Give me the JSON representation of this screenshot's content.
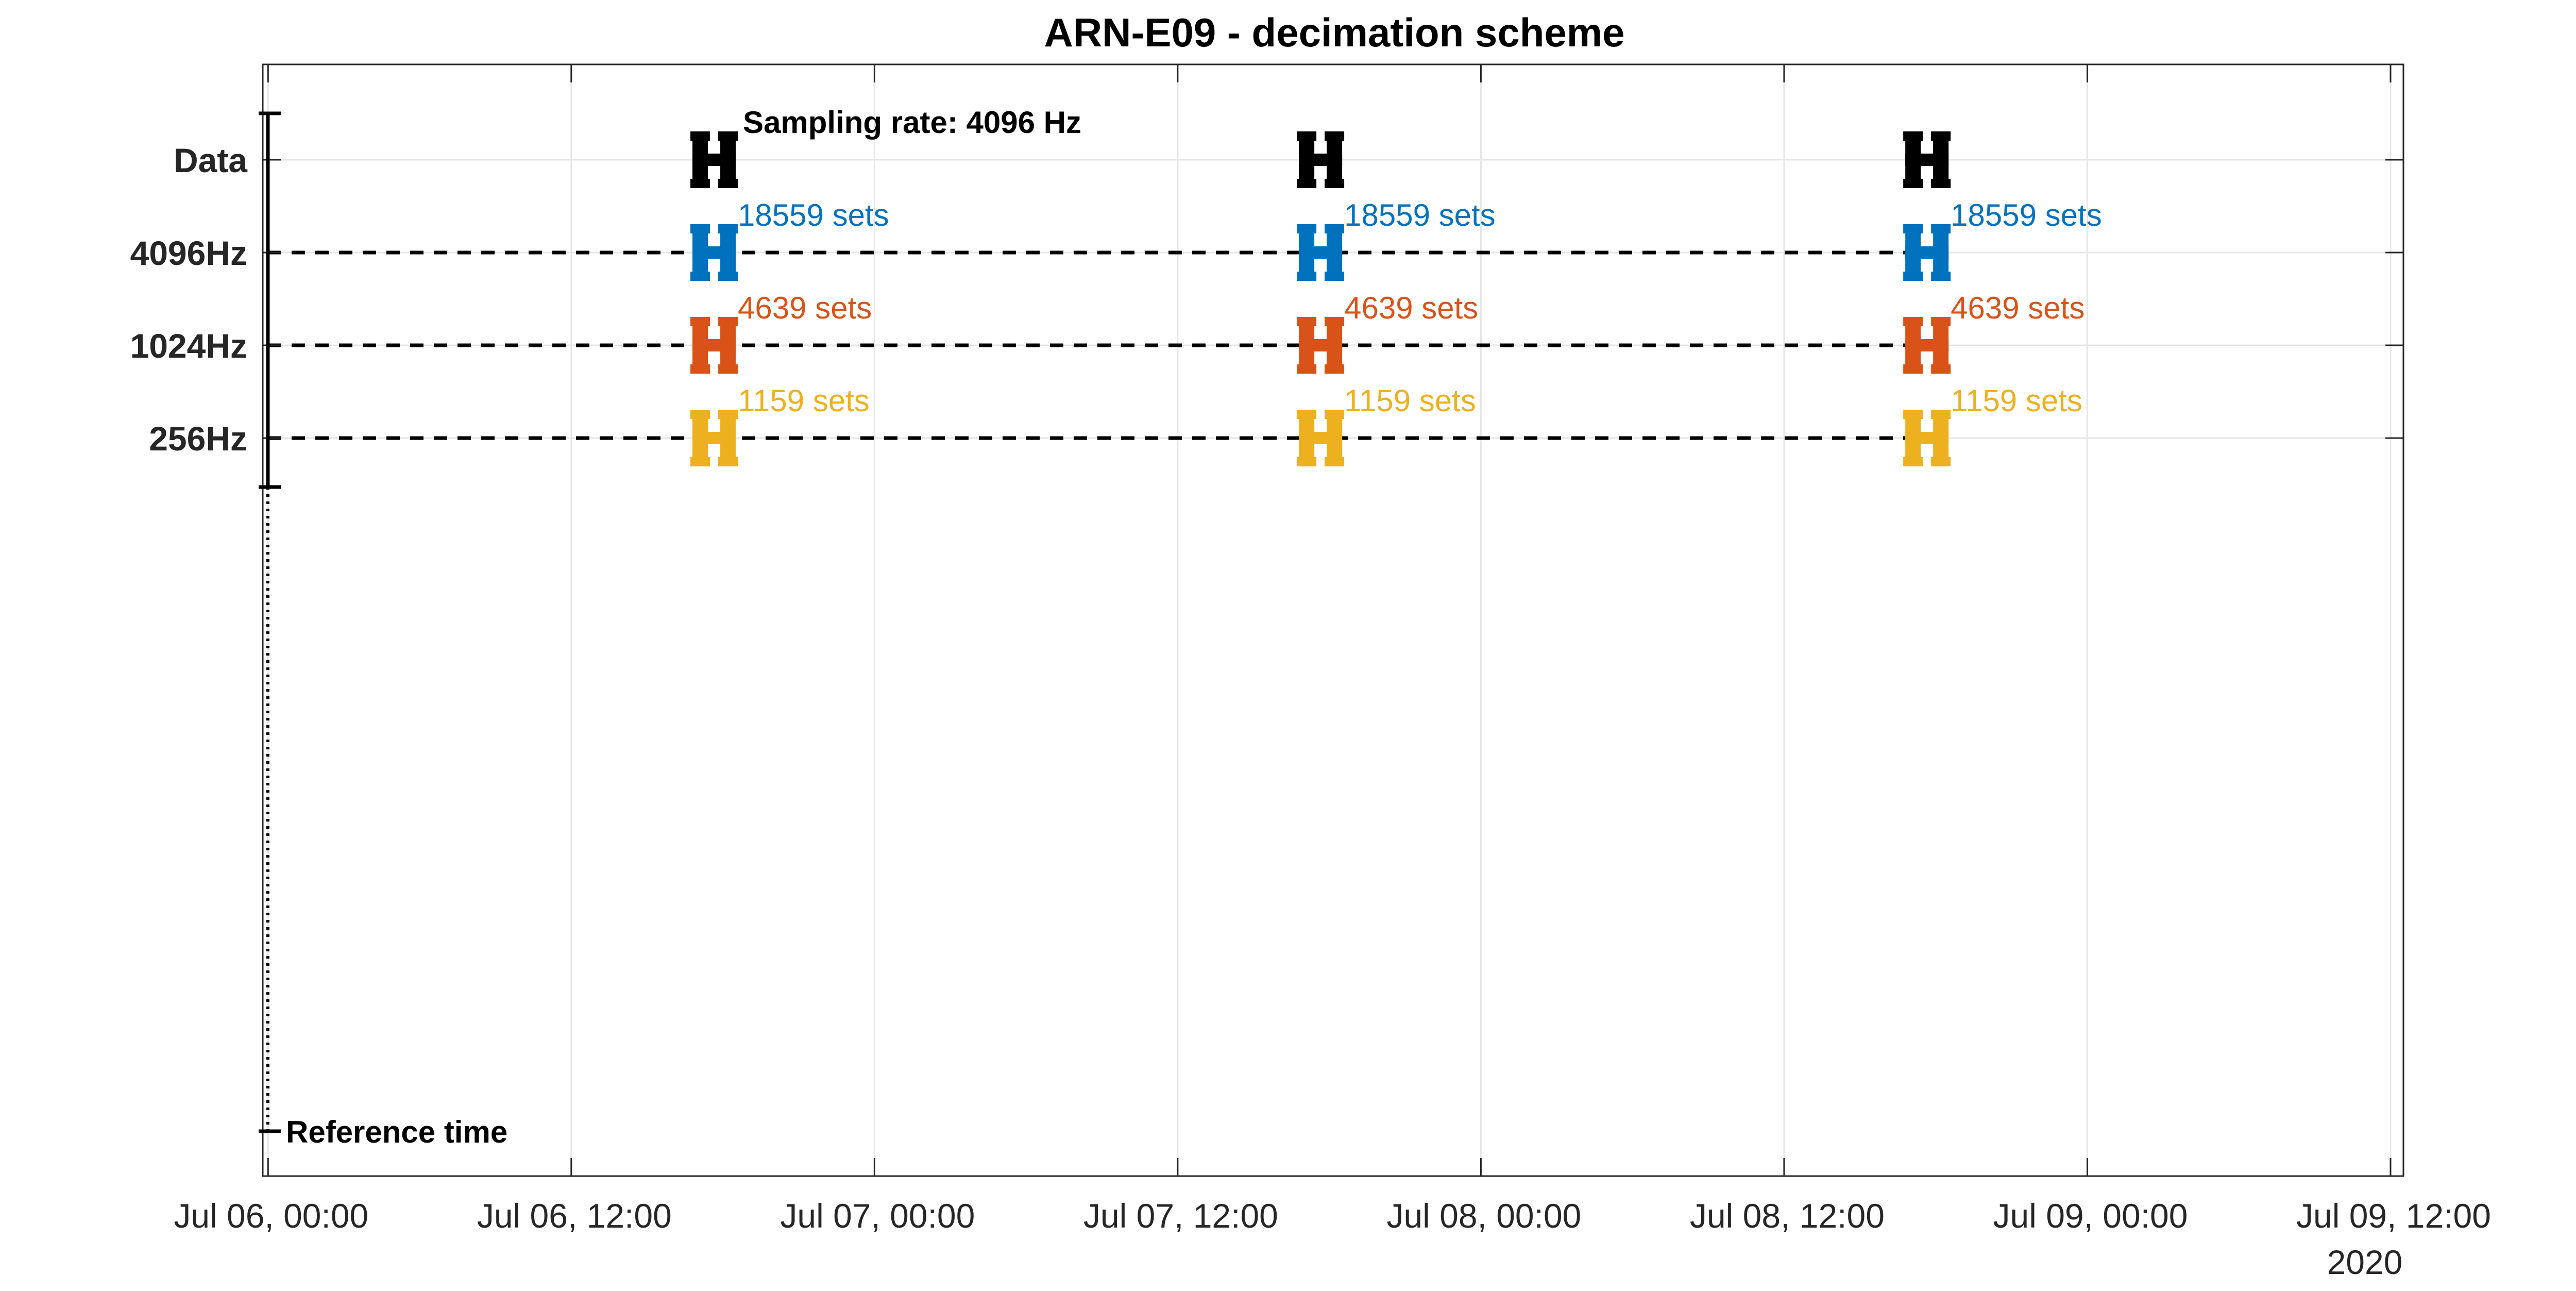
{
  "chart_data": {
    "type": "timeline",
    "title": "ARN-E09 - decimation scheme",
    "xlabel": "",
    "ylabel": "",
    "x_axis": {
      "type": "date",
      "range": [
        "2020-07-06 00:00",
        "2020-07-09 12:00"
      ],
      "ticks": [
        {
          "value": "2020-07-06 00:00",
          "label": "Jul 06, 00:00"
        },
        {
          "value": "2020-07-06 12:00",
          "label": "Jul 06, 12:00"
        },
        {
          "value": "2020-07-07 00:00",
          "label": "Jul 07, 00:00"
        },
        {
          "value": "2020-07-07 12:00",
          "label": "Jul 07, 12:00"
        },
        {
          "value": "2020-07-08 00:00",
          "label": "Jul 08, 00:00"
        },
        {
          "value": "2020-07-08 12:00",
          "label": "Jul 08, 12:00"
        },
        {
          "value": "2020-07-09 00:00",
          "label": "Jul 09, 00:00"
        },
        {
          "value": "2020-07-09 12:00",
          "label": "Jul 09, 12:00"
        }
      ],
      "secondary_label": "2020"
    },
    "y_axis": {
      "categories": [
        "Data",
        "4096Hz",
        "1024Hz",
        "256Hz"
      ],
      "reference_label": "Reference time"
    },
    "grid": true,
    "annotation": "Sampling rate: 4096 Hz",
    "series": [
      {
        "name": "Data",
        "color": "#000000",
        "row": "Data",
        "marks": [
          {
            "start": "2020-07-06 17:00",
            "end": "2020-07-06 18:00",
            "label": ""
          },
          {
            "start": "2020-07-07 17:00",
            "end": "2020-07-07 18:00",
            "label": ""
          },
          {
            "start": "2020-07-08 17:00",
            "end": "2020-07-08 18:00",
            "label": ""
          }
        ]
      },
      {
        "name": "4096Hz",
        "color": "#0072BD",
        "row": "4096Hz",
        "marks": [
          {
            "start": "2020-07-06 17:00",
            "end": "2020-07-06 18:00",
            "label": "18559 sets"
          },
          {
            "start": "2020-07-07 17:00",
            "end": "2020-07-07 18:00",
            "label": "18559 sets"
          },
          {
            "start": "2020-07-08 17:00",
            "end": "2020-07-08 18:00",
            "label": "18559 sets"
          }
        ]
      },
      {
        "name": "1024Hz",
        "color": "#D95319",
        "row": "1024Hz",
        "marks": [
          {
            "start": "2020-07-06 17:00",
            "end": "2020-07-06 18:00",
            "label": "4639 sets"
          },
          {
            "start": "2020-07-07 17:00",
            "end": "2020-07-07 18:00",
            "label": "4639 sets"
          },
          {
            "start": "2020-07-08 17:00",
            "end": "2020-07-08 18:00",
            "label": "4639 sets"
          }
        ]
      },
      {
        "name": "256Hz",
        "color": "#EDB120",
        "row": "256Hz",
        "marks": [
          {
            "start": "2020-07-06 17:00",
            "end": "2020-07-06 18:00",
            "label": "1159 sets"
          },
          {
            "start": "2020-07-07 17:00",
            "end": "2020-07-07 18:00",
            "label": "1159 sets"
          },
          {
            "start": "2020-07-08 17:00",
            "end": "2020-07-08 18:00",
            "label": "1159 sets"
          }
        ]
      }
    ]
  }
}
